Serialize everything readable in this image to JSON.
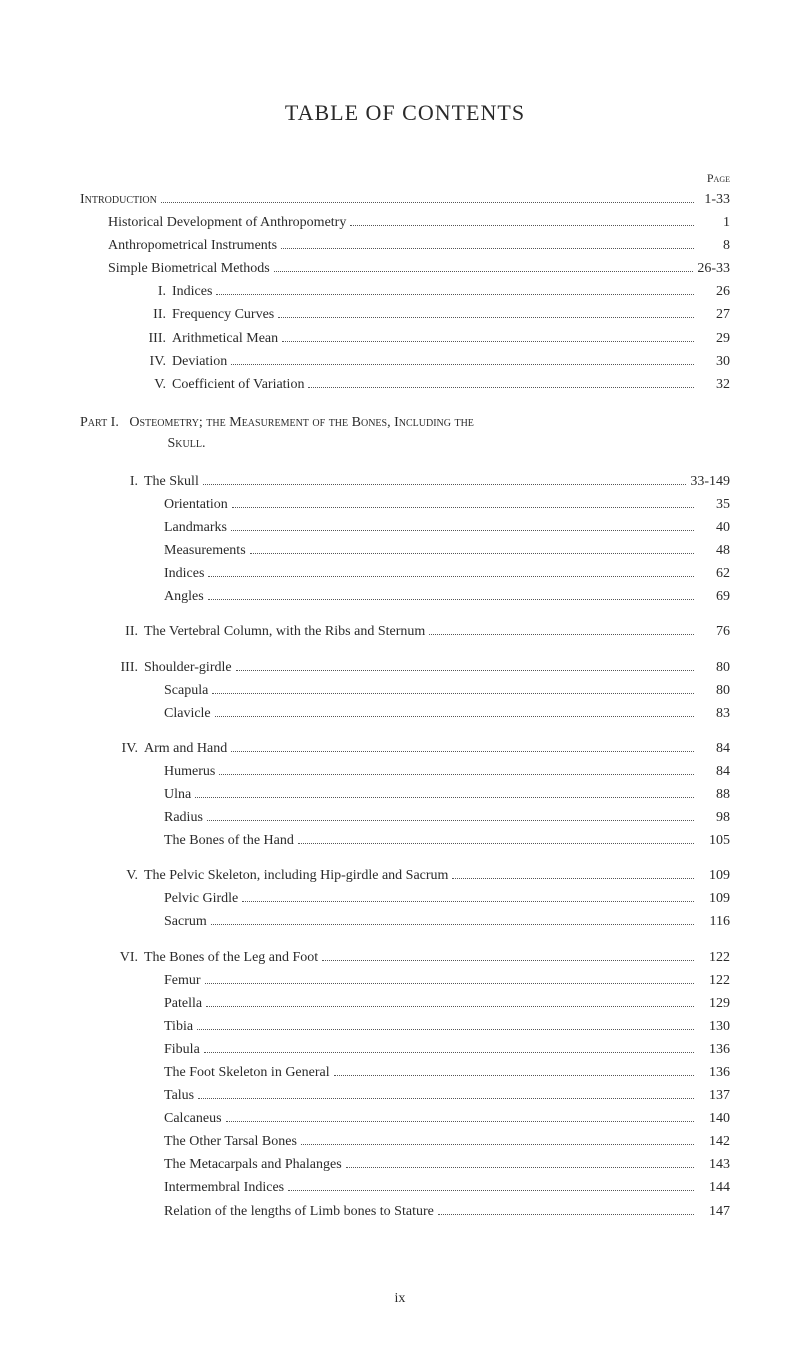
{
  "title": "TABLE OF CONTENTS",
  "pageLabel": "Page",
  "footerNumeral": "ix",
  "colors": {
    "background": "#ffffff",
    "text": "#2a2a2a",
    "dots": "#555555"
  },
  "typography": {
    "titleFontSize": 22,
    "bodyFontSize": 14,
    "pageLabelFontSize": 12,
    "lineHeight": 1.65
  },
  "entries": [
    {
      "label": "Introduction",
      "page": "1-33",
      "indent": 0,
      "smallcaps": true,
      "gap": false
    },
    {
      "label": "Historical Development of Anthropometry",
      "page": "1",
      "indent": 1,
      "smallcaps": false,
      "gap": false
    },
    {
      "label": "Anthropometrical Instruments",
      "page": "8",
      "indent": 1,
      "smallcaps": false,
      "gap": false
    },
    {
      "label": "Simple Biometrical Methods",
      "page": "26-33",
      "indent": 1,
      "smallcaps": false,
      "gap": false
    },
    {
      "roman": "I.",
      "label": "Indices",
      "page": "26",
      "indent": 2,
      "smallcaps": false,
      "gap": false
    },
    {
      "roman": "II.",
      "label": "Frequency Curves",
      "page": "27",
      "indent": 2,
      "smallcaps": false,
      "gap": false
    },
    {
      "roman": "III.",
      "label": "Arithmetical Mean",
      "page": "29",
      "indent": 2,
      "smallcaps": false,
      "gap": false
    },
    {
      "roman": "IV.",
      "label": "Deviation",
      "page": "30",
      "indent": 2,
      "smallcaps": false,
      "gap": false
    },
    {
      "roman": "V.",
      "label": "Coefficient of Variation",
      "page": "32",
      "indent": 2,
      "smallcaps": false,
      "gap": false
    }
  ],
  "partHeading": {
    "prefix": "Part I.",
    "titleLine1": "Osteometry; the Measurement of the Bones, Including the",
    "titleLine2": "Skull."
  },
  "partEntries": [
    {
      "roman": "I.",
      "label": "The Skull",
      "page": "33-149",
      "indent": 1,
      "smallcaps": false,
      "gap": true
    },
    {
      "label": "Orientation",
      "page": "35",
      "indent": 3,
      "smallcaps": false,
      "gap": false
    },
    {
      "label": "Landmarks",
      "page": "40",
      "indent": 3,
      "smallcaps": false,
      "gap": false
    },
    {
      "label": "Measurements",
      "page": "48",
      "indent": 3,
      "smallcaps": false,
      "gap": false
    },
    {
      "label": "Indices",
      "page": "62",
      "indent": 3,
      "smallcaps": false,
      "gap": false
    },
    {
      "label": "Angles",
      "page": "69",
      "indent": 3,
      "smallcaps": false,
      "gap": false
    },
    {
      "roman": "II.",
      "label": "The Vertebral Column, with the Ribs and Sternum",
      "page": "76",
      "indent": 1,
      "smallcaps": false,
      "gap": true
    },
    {
      "roman": "III.",
      "label": "Shoulder-girdle",
      "page": "80",
      "indent": 1,
      "smallcaps": false,
      "gap": true
    },
    {
      "label": "Scapula",
      "page": "80",
      "indent": 3,
      "smallcaps": false,
      "gap": false
    },
    {
      "label": "Clavicle",
      "page": "83",
      "indent": 3,
      "smallcaps": false,
      "gap": false
    },
    {
      "roman": "IV.",
      "label": "Arm and Hand",
      "page": "84",
      "indent": 1,
      "smallcaps": false,
      "gap": true
    },
    {
      "label": "Humerus",
      "page": "84",
      "indent": 3,
      "smallcaps": false,
      "gap": false
    },
    {
      "label": "Ulna",
      "page": "88",
      "indent": 3,
      "smallcaps": false,
      "gap": false
    },
    {
      "label": "Radius",
      "page": "98",
      "indent": 3,
      "smallcaps": false,
      "gap": false
    },
    {
      "label": "The Bones of the Hand",
      "page": "105",
      "indent": 3,
      "smallcaps": false,
      "gap": false
    },
    {
      "roman": "V.",
      "label": "The Pelvic Skeleton, including Hip-girdle and Sacrum",
      "page": "109",
      "indent": 1,
      "smallcaps": false,
      "gap": true
    },
    {
      "label": "Pelvic Girdle",
      "page": "109",
      "indent": 3,
      "smallcaps": false,
      "gap": false
    },
    {
      "label": "Sacrum",
      "page": "116",
      "indent": 3,
      "smallcaps": false,
      "gap": false
    },
    {
      "roman": "VI.",
      "label": "The Bones of the Leg and Foot",
      "page": "122",
      "indent": 1,
      "smallcaps": false,
      "gap": true
    },
    {
      "label": "Femur",
      "page": "122",
      "indent": 3,
      "smallcaps": false,
      "gap": false
    },
    {
      "label": "Patella",
      "page": "129",
      "indent": 3,
      "smallcaps": false,
      "gap": false
    },
    {
      "label": "Tibia",
      "page": "130",
      "indent": 3,
      "smallcaps": false,
      "gap": false
    },
    {
      "label": "Fibula",
      "page": "136",
      "indent": 3,
      "smallcaps": false,
      "gap": false
    },
    {
      "label": "The Foot Skeleton in General",
      "page": "136",
      "indent": 3,
      "smallcaps": false,
      "gap": false
    },
    {
      "label": "Talus",
      "page": "137",
      "indent": 3,
      "smallcaps": false,
      "gap": false
    },
    {
      "label": "Calcaneus",
      "page": "140",
      "indent": 3,
      "smallcaps": false,
      "gap": false
    },
    {
      "label": "The Other Tarsal Bones",
      "page": "142",
      "indent": 3,
      "smallcaps": false,
      "gap": false
    },
    {
      "label": "The Metacarpals and Phalanges",
      "page": "143",
      "indent": 3,
      "smallcaps": false,
      "gap": false
    },
    {
      "label": "Intermembral Indices",
      "page": "144",
      "indent": 3,
      "smallcaps": false,
      "gap": false
    },
    {
      "label": "Relation of the lengths of Limb bones to Stature",
      "page": "147",
      "indent": 3,
      "smallcaps": false,
      "gap": false
    }
  ]
}
